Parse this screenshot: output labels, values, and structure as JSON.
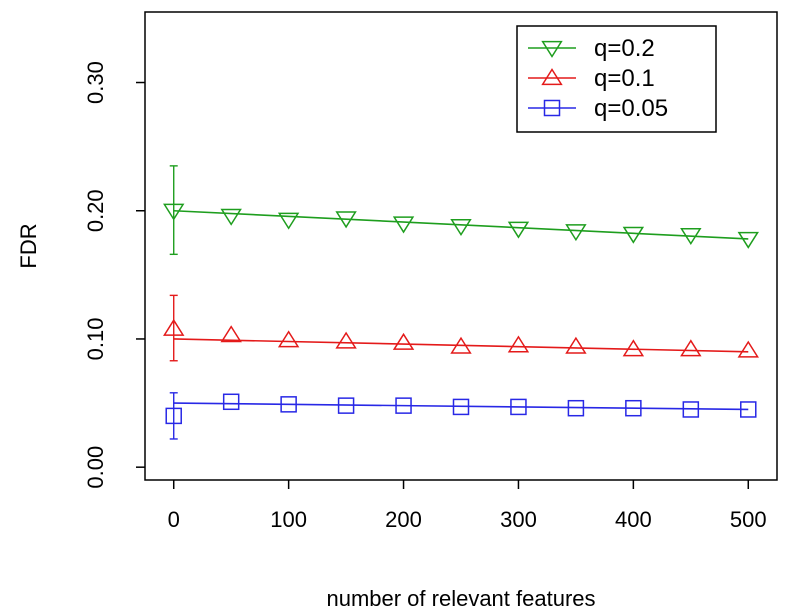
{
  "chart_data": {
    "type": "line",
    "title": "",
    "xlabel": "number of relevant features",
    "ylabel": "FDR",
    "xlim": [
      -25,
      525
    ],
    "ylim": [
      -0.01,
      0.355
    ],
    "x_ticks": [
      0,
      100,
      200,
      300,
      400,
      500
    ],
    "x_tick_labels": [
      "0",
      "100",
      "200",
      "300",
      "400",
      "500"
    ],
    "y_ticks": [
      0.0,
      0.1,
      0.2,
      0.3
    ],
    "y_tick_labels": [
      "0.00",
      "0.10",
      "0.20",
      "0.30"
    ],
    "grid": false,
    "legend_position": "top-right",
    "x": [
      0,
      50,
      100,
      150,
      200,
      250,
      300,
      350,
      400,
      450,
      500
    ],
    "series": [
      {
        "name": "q=0.2",
        "color": "#1e9e1e",
        "marker": "triangle-down",
        "values": [
          0.2,
          0.196,
          0.193,
          0.194,
          0.19,
          0.188,
          0.186,
          0.184,
          0.182,
          0.181,
          0.178
        ],
        "fit": [
          0.2,
          0.178
        ],
        "error_bar": {
          "x": 0,
          "low": 0.166,
          "high": 0.235
        }
      },
      {
        "name": "q=0.1",
        "color": "#e41a1a",
        "marker": "triangle-up",
        "values": [
          0.108,
          0.103,
          0.099,
          0.098,
          0.097,
          0.094,
          0.095,
          0.094,
          0.092,
          0.092,
          0.091
        ],
        "fit": [
          0.1,
          0.09
        ],
        "error_bar": {
          "x": 0,
          "low": 0.083,
          "high": 0.134
        }
      },
      {
        "name": "q=0.05",
        "color": "#2828e6",
        "marker": "square",
        "values": [
          0.04,
          0.051,
          0.049,
          0.048,
          0.048,
          0.047,
          0.047,
          0.046,
          0.046,
          0.045,
          0.045
        ],
        "fit": [
          0.05,
          0.045
        ],
        "error_bar": {
          "x": 0,
          "low": 0.022,
          "high": 0.058
        }
      }
    ]
  }
}
